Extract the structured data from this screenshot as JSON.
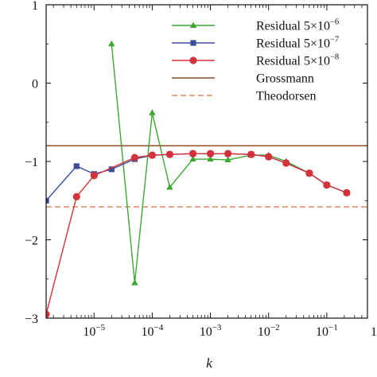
{
  "chart_data": {
    "type": "line",
    "title": "",
    "xlabel": "k",
    "ylabel": "",
    "xscale": "log",
    "xlim": [
      1.5e-06,
      0.5
    ],
    "ylim": [
      -3,
      1
    ],
    "grid": false,
    "legend_position": "top-right",
    "x_tick_labels": [
      {
        "value": 1e-05,
        "base": "10",
        "exp": "−5"
      },
      {
        "value": 0.0001,
        "base": "10",
        "exp": "−4"
      },
      {
        "value": 0.001,
        "base": "10",
        "exp": "−3"
      },
      {
        "value": 0.01,
        "base": "10",
        "exp": "−2"
      },
      {
        "value": 0.1,
        "base": "10",
        "exp": "−1"
      }
    ],
    "x_edge_label": "1",
    "y_ticks": [
      1,
      0,
      -1,
      -2,
      -3
    ],
    "y_tick_labels": [
      "1",
      "0",
      "−1",
      "−2",
      "−3"
    ],
    "series": [
      {
        "name": "Residual 5×10",
        "name_exp": "−6",
        "color": "#3aa832",
        "marker": "triangle",
        "points": [
          [
            2e-05,
            0.5
          ],
          [
            5e-05,
            -2.55
          ],
          [
            0.0001,
            -0.38
          ],
          [
            0.0002,
            -1.33
          ],
          [
            0.0005,
            -0.97
          ],
          [
            0.001,
            -0.97
          ],
          [
            0.002,
            -0.98
          ],
          [
            0.005,
            -0.92
          ],
          [
            0.01,
            -0.92
          ],
          [
            0.02,
            -1.0
          ],
          [
            0.05,
            -1.15
          ],
          [
            0.1,
            -1.3
          ],
          [
            0.22,
            -1.4
          ]
        ]
      },
      {
        "name": "Residual 5×10",
        "name_exp": "−7",
        "color": "#3c4f9a",
        "marker": "square",
        "points": [
          [
            1.5e-06,
            -1.5
          ],
          [
            5e-06,
            -1.06
          ],
          [
            1e-05,
            -1.16
          ],
          [
            2e-05,
            -1.1
          ],
          [
            5e-05,
            -0.97
          ],
          [
            0.0001,
            -0.92
          ],
          [
            0.0002,
            -0.91
          ],
          [
            0.0005,
            -0.9
          ],
          [
            0.001,
            -0.9
          ],
          [
            0.002,
            -0.9
          ],
          [
            0.005,
            -0.91
          ],
          [
            0.01,
            -0.94
          ],
          [
            0.02,
            -1.02
          ],
          [
            0.05,
            -1.15
          ],
          [
            0.1,
            -1.3
          ],
          [
            0.22,
            -1.4
          ]
        ]
      },
      {
        "name": "Residual 5×10",
        "name_exp": "−8",
        "color": "#d4323a",
        "marker": "circle",
        "points": [
          [
            1.5e-06,
            -2.95
          ],
          [
            5e-06,
            -1.45
          ],
          [
            1e-05,
            -1.18
          ],
          [
            5e-05,
            -0.95
          ],
          [
            0.0001,
            -0.92
          ],
          [
            0.0002,
            -0.91
          ],
          [
            0.0005,
            -0.9
          ],
          [
            0.001,
            -0.9
          ],
          [
            0.002,
            -0.9
          ],
          [
            0.005,
            -0.91
          ],
          [
            0.01,
            -0.94
          ],
          [
            0.02,
            -1.02
          ],
          [
            0.05,
            -1.15
          ],
          [
            0.1,
            -1.3
          ],
          [
            0.22,
            -1.4
          ]
        ]
      }
    ],
    "reference_lines": [
      {
        "name": "Grossmann",
        "y": -0.8,
        "color": "#8a4b2b",
        "style": "solid"
      },
      {
        "name": "Theodorsen",
        "y": -1.58,
        "color": "#d98a5f",
        "style": "dashed"
      }
    ]
  }
}
